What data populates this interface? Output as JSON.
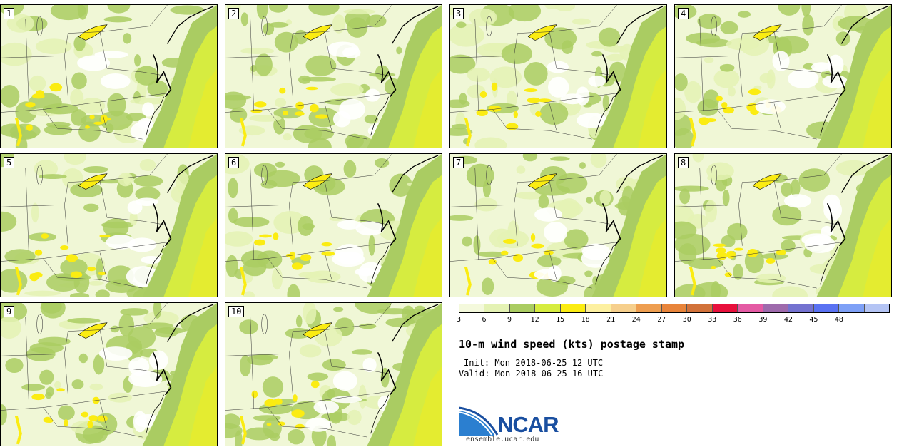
{
  "panels": [
    {
      "label": "1"
    },
    {
      "label": "2"
    },
    {
      "label": "3"
    },
    {
      "label": "4"
    },
    {
      "label": "5"
    },
    {
      "label": "6"
    },
    {
      "label": "7"
    },
    {
      "label": "8"
    },
    {
      "label": "9"
    },
    {
      "label": "10"
    }
  ],
  "colorbar": {
    "colors": [
      "#f4f9dc",
      "#e4f2b4",
      "#aacc62",
      "#d6ec40",
      "#fbec12",
      "#fdf0a0",
      "#f6cf8c",
      "#ee9e50",
      "#e8843a",
      "#d2723a",
      "#e8103c",
      "#e45aa4",
      "#9e6aac",
      "#7472d0",
      "#5a72f2",
      "#7ea0f6",
      "#b4c4f4"
    ],
    "ticks": [
      "3",
      "6",
      "9",
      "12",
      "15",
      "18",
      "21",
      "24",
      "27",
      "30",
      "33",
      "36",
      "39",
      "42",
      "45",
      "48"
    ]
  },
  "title": "10-m wind speed (kts) postage stamp",
  "init": "Init: Mon 2018-06-25 12 UTC",
  "valid": "Valid: Mon 2018-06-25 16 UTC",
  "logo": {
    "text": "NCAR",
    "site": "ensemble.ucar.edu"
  }
}
